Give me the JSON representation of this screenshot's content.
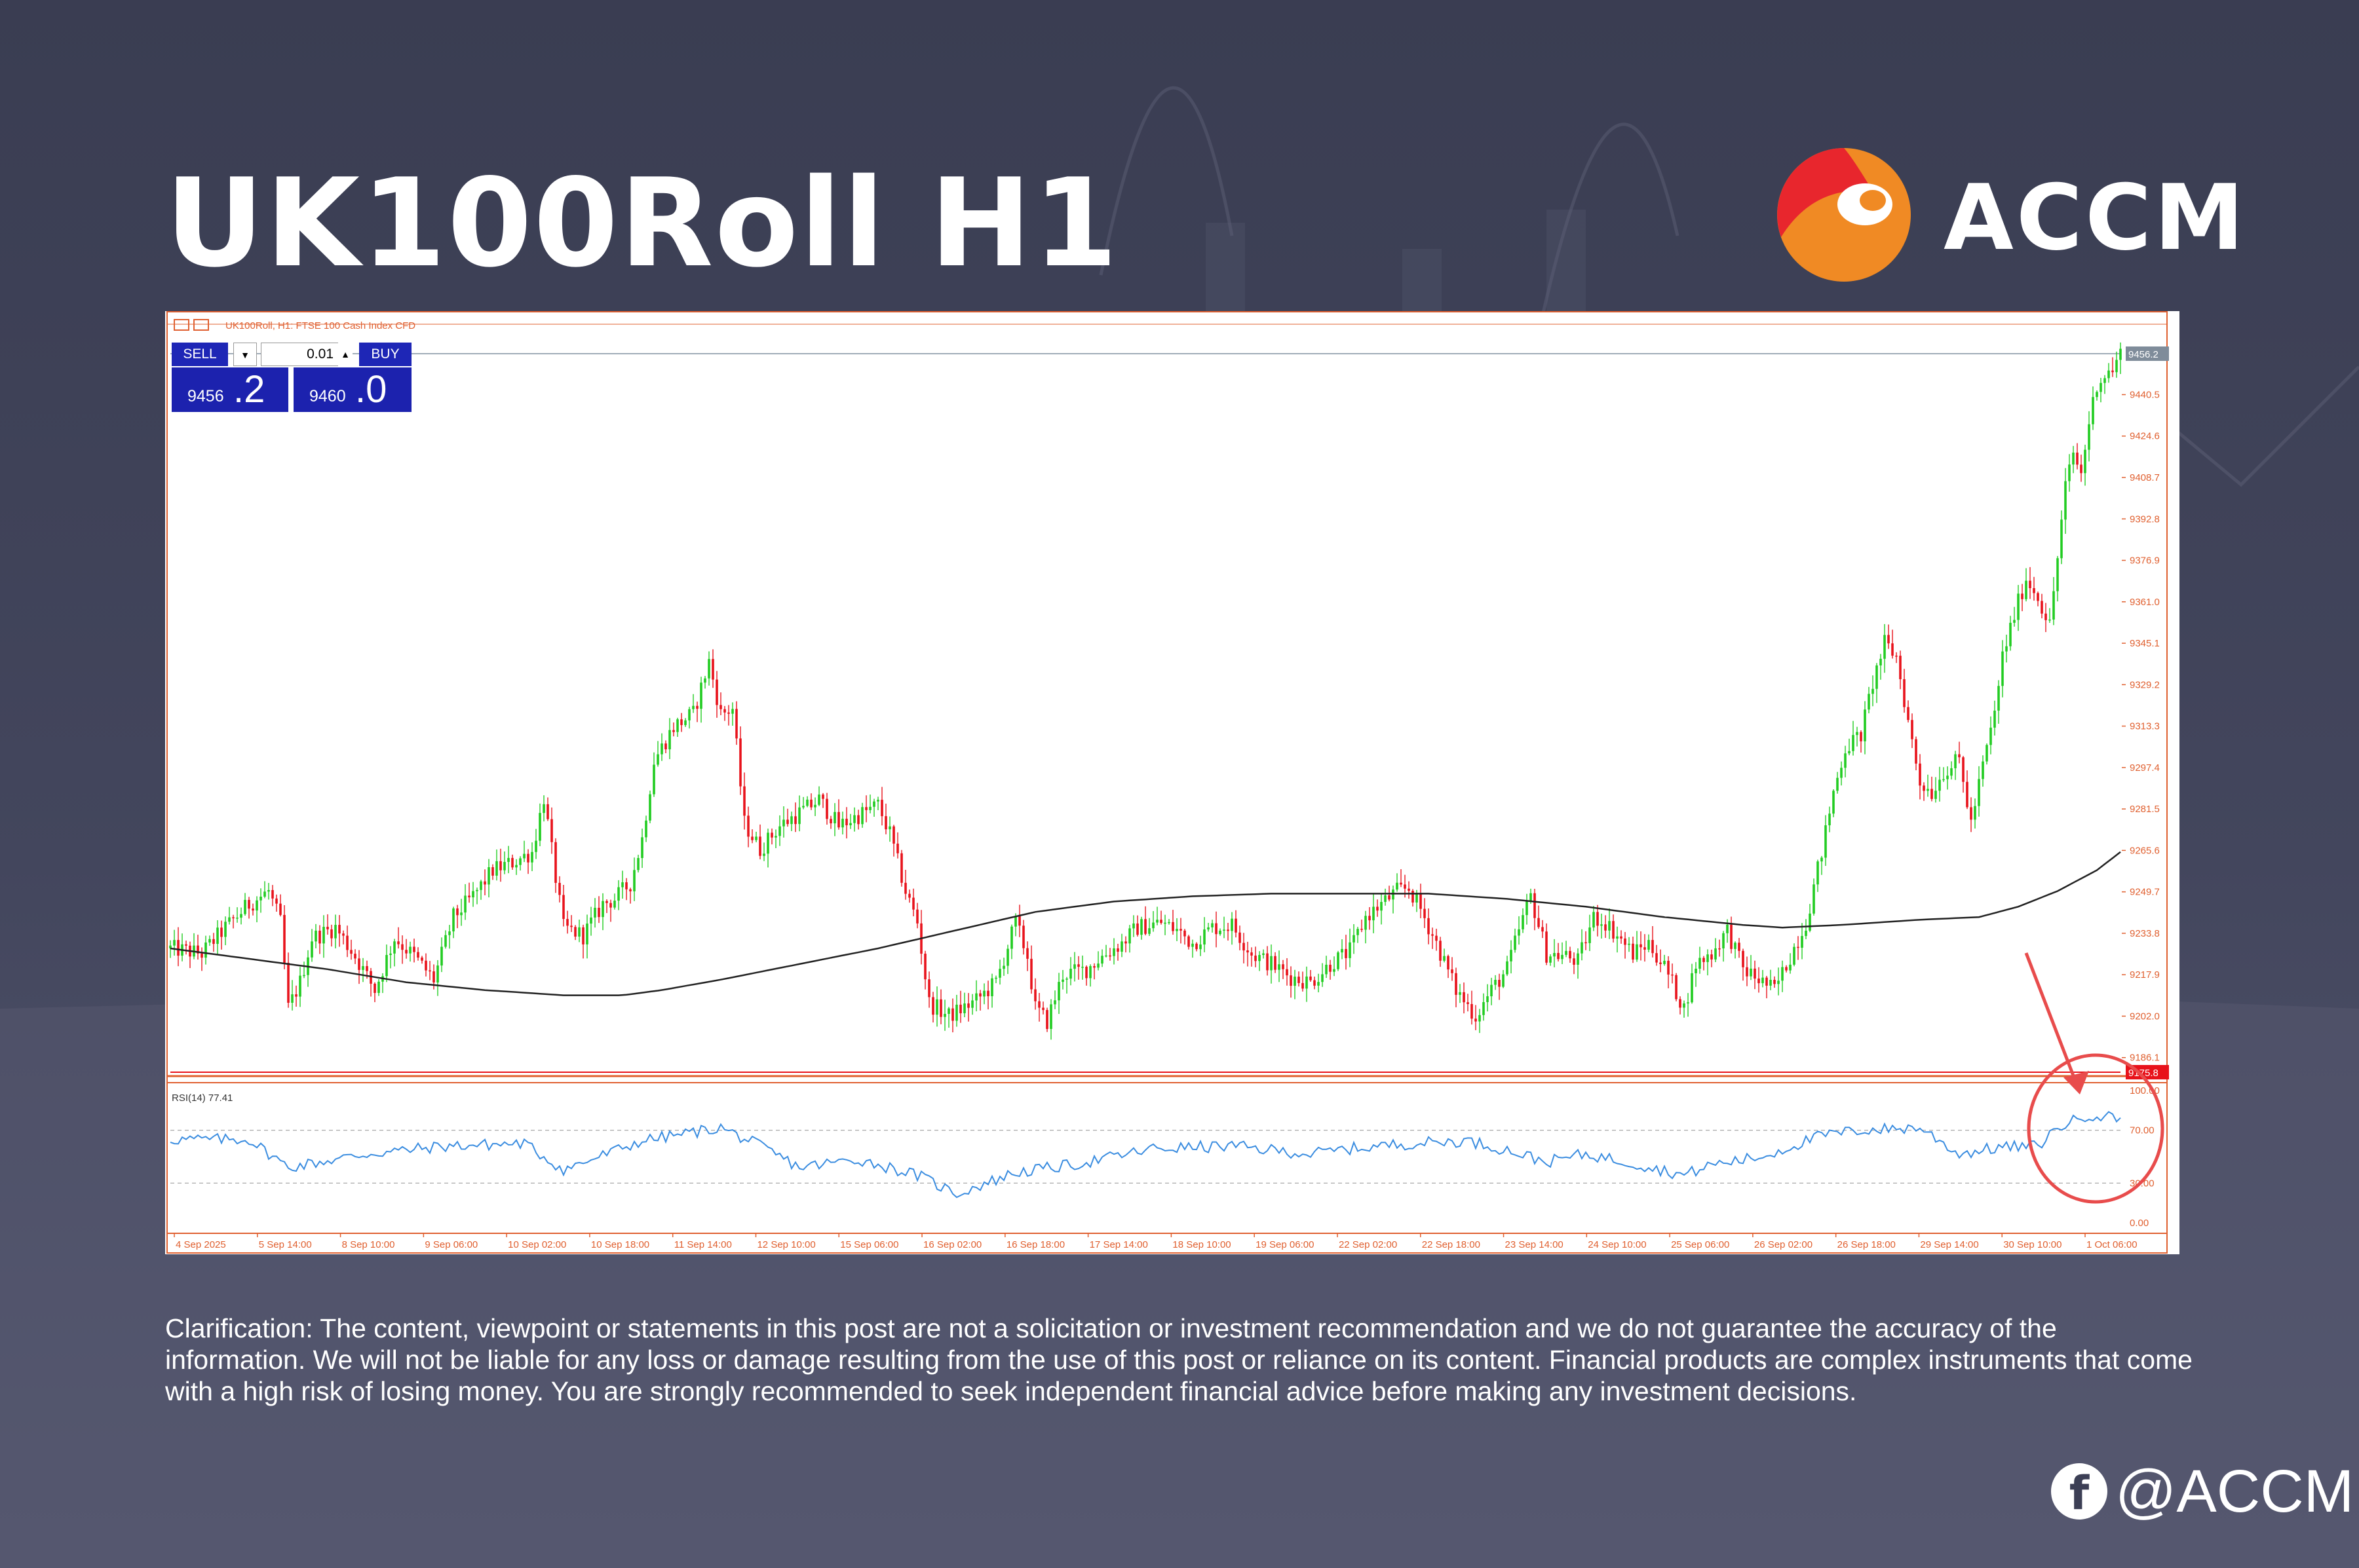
{
  "title": "UK100Roll H1",
  "brand": {
    "name": "ACCM"
  },
  "colors": {
    "background": "#3a3d52",
    "bull": "#22cc22",
    "bear": "#e8121b",
    "ma": "#222222",
    "rsi": "#3b8de0",
    "accent": "#e84c4c"
  },
  "chart_window": {
    "header": "UK100Roll, H1:  FTSE 100 Cash Index CFD",
    "sell_label": "SELL",
    "buy_label": "BUY",
    "lot_value": "0.01",
    "sell_price_main": "9456",
    "sell_price_frac": ".2",
    "buy_price_main": "9460",
    "buy_price_frac": ".0",
    "rsi_label": "RSI(14) 77.41"
  },
  "chart_data": {
    "type": "candlestick",
    "symbol": "UK100Roll",
    "timeframe": "H1",
    "price_axis_ticks": [
      "9440.5",
      "9424.6",
      "9408.7",
      "9392.8",
      "9376.9",
      "9361.0",
      "9345.1",
      "9329.2",
      "9313.3",
      "9297.4",
      "9281.5",
      "9265.6",
      "9249.7",
      "9233.8",
      "9217.9",
      "9202.0",
      "9186.1"
    ],
    "ylim": [
      9181,
      9465
    ],
    "current_price": "9456.2",
    "horizontal_line": "9175.8",
    "x_ticks": [
      "4 Sep 2025",
      "5 Sep 14:00",
      "8 Sep 10:00",
      "9 Sep 06:00",
      "10 Sep 02:00",
      "10 Sep 18:00",
      "11 Sep 14:00",
      "12 Sep 10:00",
      "15 Sep 06:00",
      "16 Sep 02:00",
      "16 Sep 18:00",
      "17 Sep 14:00",
      "18 Sep 10:00",
      "19 Sep 06:00",
      "22 Sep 02:00",
      "22 Sep 18:00",
      "23 Sep 14:00",
      "24 Sep 10:00",
      "25 Sep 06:00",
      "26 Sep 02:00",
      "26 Sep 18:00",
      "29 Sep 14:00",
      "30 Sep 10:00",
      "1 Oct 06:00"
    ],
    "price_path": [
      [
        0,
        9228
      ],
      [
        8,
        9226
      ],
      [
        14,
        9236
      ],
      [
        20,
        9245
      ],
      [
        25,
        9250
      ],
      [
        28,
        9238
      ],
      [
        30,
        9205
      ],
      [
        33,
        9215
      ],
      [
        36,
        9232
      ],
      [
        42,
        9236
      ],
      [
        47,
        9225
      ],
      [
        52,
        9212
      ],
      [
        57,
        9232
      ],
      [
        62,
        9225
      ],
      [
        67,
        9216
      ],
      [
        72,
        9240
      ],
      [
        77,
        9248
      ],
      [
        82,
        9258
      ],
      [
        87,
        9261
      ],
      [
        92,
        9265
      ],
      [
        95,
        9286
      ],
      [
        98,
        9255
      ],
      [
        100,
        9236
      ],
      [
        105,
        9233
      ],
      [
        110,
        9245
      ],
      [
        113,
        9247
      ],
      [
        117,
        9253
      ],
      [
        120,
        9270
      ],
      [
        123,
        9300
      ],
      [
        128,
        9313
      ],
      [
        133,
        9318
      ],
      [
        137,
        9338
      ],
      [
        140,
        9318
      ],
      [
        143,
        9320
      ],
      [
        146,
        9276
      ],
      [
        150,
        9266
      ],
      [
        155,
        9275
      ],
      [
        160,
        9280
      ],
      [
        165,
        9285
      ],
      [
        170,
        9275
      ],
      [
        175,
        9279
      ],
      [
        180,
        9283
      ],
      [
        183,
        9272
      ],
      [
        187,
        9250
      ],
      [
        190,
        9238
      ],
      [
        193,
        9207
      ],
      [
        198,
        9202
      ],
      [
        205,
        9208
      ],
      [
        210,
        9215
      ],
      [
        215,
        9238
      ],
      [
        218,
        9225
      ],
      [
        220,
        9205
      ],
      [
        223,
        9200
      ],
      [
        227,
        9218
      ],
      [
        233,
        9220
      ],
      [
        237,
        9225
      ],
      [
        242,
        9230
      ],
      [
        246,
        9236
      ],
      [
        252,
        9238
      ],
      [
        256,
        9235
      ],
      [
        260,
        9230
      ],
      [
        265,
        9236
      ],
      [
        270,
        9237
      ],
      [
        275,
        9226
      ],
      [
        280,
        9222
      ],
      [
        285,
        9217
      ],
      [
        290,
        9215
      ],
      [
        295,
        9222
      ],
      [
        300,
        9227
      ],
      [
        304,
        9240
      ],
      [
        308,
        9245
      ],
      [
        312,
        9250
      ],
      [
        315,
        9251
      ],
      [
        318,
        9243
      ],
      [
        322,
        9230
      ],
      [
        327,
        9212
      ],
      [
        332,
        9202
      ],
      [
        336,
        9212
      ],
      [
        340,
        9220
      ],
      [
        343,
        9235
      ],
      [
        346,
        9248
      ],
      [
        350,
        9226
      ],
      [
        355,
        9225
      ],
      [
        358,
        9223
      ],
      [
        362,
        9240
      ],
      [
        365,
        9238
      ],
      [
        368,
        9233
      ],
      [
        372,
        9226
      ],
      [
        376,
        9230
      ],
      [
        380,
        9221
      ],
      [
        385,
        9205
      ],
      [
        388,
        9222
      ],
      [
        392,
        9226
      ],
      [
        396,
        9235
      ],
      [
        400,
        9220
      ],
      [
        405,
        9215
      ],
      [
        408,
        9212
      ],
      [
        412,
        9225
      ],
      [
        416,
        9238
      ],
      [
        420,
        9265
      ],
      [
        423,
        9288
      ],
      [
        426,
        9305
      ],
      [
        430,
        9310
      ],
      [
        433,
        9330
      ],
      [
        436,
        9345
      ],
      [
        439,
        9340
      ],
      [
        442,
        9315
      ],
      [
        445,
        9292
      ],
      [
        448,
        9288
      ],
      [
        451,
        9296
      ],
      [
        455,
        9300
      ],
      [
        458,
        9276
      ],
      [
        461,
        9298
      ],
      [
        464,
        9318
      ],
      [
        466,
        9340
      ],
      [
        469,
        9356
      ],
      [
        472,
        9370
      ],
      [
        475,
        9363
      ],
      [
        478,
        9352
      ],
      [
        480,
        9378
      ],
      [
        482,
        9405
      ],
      [
        484,
        9418
      ],
      [
        486,
        9410
      ],
      [
        488,
        9430
      ],
      [
        490,
        9445
      ],
      [
        492,
        9448
      ],
      [
        494,
        9450
      ],
      [
        496,
        9456
      ]
    ],
    "ma_path": [
      [
        0,
        9228
      ],
      [
        20,
        9224
      ],
      [
        40,
        9220
      ],
      [
        60,
        9215
      ],
      [
        80,
        9212
      ],
      [
        100,
        9210
      ],
      [
        115,
        9210
      ],
      [
        125,
        9212
      ],
      [
        140,
        9216
      ],
      [
        160,
        9222
      ],
      [
        180,
        9228
      ],
      [
        200,
        9235
      ],
      [
        220,
        9242
      ],
      [
        240,
        9246
      ],
      [
        260,
        9248
      ],
      [
        280,
        9249
      ],
      [
        300,
        9249
      ],
      [
        320,
        9249
      ],
      [
        340,
        9247
      ],
      [
        360,
        9244
      ],
      [
        380,
        9240
      ],
      [
        400,
        9237
      ],
      [
        410,
        9236
      ],
      [
        425,
        9237
      ],
      [
        445,
        9239
      ],
      [
        460,
        9240
      ],
      [
        470,
        9244
      ],
      [
        480,
        9250
      ],
      [
        490,
        9258
      ],
      [
        496,
        9265
      ]
    ],
    "rsi": {
      "period": 14,
      "value": 77.41,
      "levels": [
        70,
        30
      ],
      "axis_ticks": [
        "100.00",
        "70.00",
        "30.00",
        "0.00"
      ],
      "ylim": [
        0,
        100
      ],
      "path": [
        [
          0,
          63
        ],
        [
          20,
          63
        ],
        [
          30,
          42
        ],
        [
          50,
          52
        ],
        [
          70,
          58
        ],
        [
          90,
          60
        ],
        [
          100,
          40
        ],
        [
          120,
          62
        ],
        [
          140,
          72
        ],
        [
          150,
          58
        ],
        [
          160,
          42
        ],
        [
          175,
          48
        ],
        [
          190,
          36
        ],
        [
          200,
          22
        ],
        [
          215,
          38
        ],
        [
          230,
          44
        ],
        [
          250,
          56
        ],
        [
          270,
          58
        ],
        [
          290,
          52
        ],
        [
          300,
          56
        ],
        [
          315,
          60
        ],
        [
          330,
          62
        ],
        [
          340,
          55
        ],
        [
          350,
          46
        ],
        [
          360,
          52
        ],
        [
          372,
          45
        ],
        [
          385,
          36
        ],
        [
          392,
          44
        ],
        [
          405,
          50
        ],
        [
          420,
          66
        ],
        [
          430,
          70
        ],
        [
          445,
          72
        ],
        [
          455,
          52
        ],
        [
          465,
          57
        ],
        [
          475,
          58
        ],
        [
          480,
          72
        ],
        [
          488,
          82
        ],
        [
          496,
          79
        ]
      ]
    }
  },
  "disclaimer": "Clarification: The content, viewpoint or statements in this post are not a solicitation or investment recommendation and we do not guarantee the accuracy of the information. We will not be liable for any loss or damage resulting from the use of this post or reliance on its content. Financial products are complex instruments that come with a high risk of losing money. You are strongly recommended to seek independent financial advice before making any investment decisions.",
  "social": {
    "icon": "facebook-icon",
    "handle": "@ACCM"
  }
}
